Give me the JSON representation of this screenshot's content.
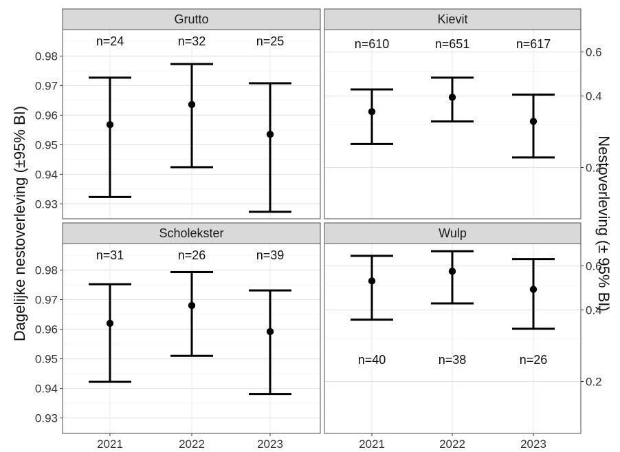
{
  "chart_data": {
    "type": "errorbar",
    "x_categories": [
      "2021",
      "2022",
      "2023"
    ],
    "left_axis": {
      "label": "Dagelijke nestoverleving (±95% BI)",
      "ticks": [
        "0.98",
        "0.97",
        "0.96",
        "0.95",
        "0.94",
        "0.93"
      ]
    },
    "right_axis": {
      "label": "Nestoverleving (± 95% BI)",
      "ticks": [
        "0.6",
        "0.4",
        "0.2"
      ]
    },
    "grid": true,
    "panels": [
      {
        "name": "Grutto",
        "axis": "left",
        "points": [
          {
            "x": "2021",
            "y": 0.9568,
            "lo": 0.9323,
            "hi": 0.9727,
            "n": "n=24"
          },
          {
            "x": "2022",
            "y": 0.9636,
            "lo": 0.9424,
            "hi": 0.9773,
            "n": "n=32"
          },
          {
            "x": "2023",
            "y": 0.9535,
            "lo": 0.9273,
            "hi": 0.9708,
            "n": "n=25"
          }
        ]
      },
      {
        "name": "Kievit",
        "axis": "right",
        "points": [
          {
            "x": "2021",
            "y": 0.34,
            "lo": 0.25,
            "hi": 0.42,
            "n": "n=610"
          },
          {
            "x": "2022",
            "y": 0.39,
            "lo": 0.31,
            "hi": 0.47,
            "n": "n=651"
          },
          {
            "x": "2023",
            "y": 0.31,
            "lo": 0.22,
            "hi": 0.4,
            "n": "n=617"
          }
        ]
      },
      {
        "name": "Scholekster",
        "axis": "left",
        "points": [
          {
            "x": "2021",
            "y": 0.962,
            "lo": 0.9422,
            "hi": 0.9752,
            "n": "n=31"
          },
          {
            "x": "2022",
            "y": 0.968,
            "lo": 0.951,
            "hi": 0.9793,
            "n": "n=26"
          },
          {
            "x": "2023",
            "y": 0.9592,
            "lo": 0.9381,
            "hi": 0.9731,
            "n": "n=39"
          }
        ]
      },
      {
        "name": "Wulp",
        "axis": "right",
        "points": [
          {
            "x": "2021",
            "y": 0.52,
            "lo": 0.36,
            "hi": 0.66,
            "n": "n=40"
          },
          {
            "x": "2022",
            "y": 0.57,
            "lo": 0.42,
            "hi": 0.69,
            "n": "n=38"
          },
          {
            "x": "2023",
            "y": 0.48,
            "lo": 0.33,
            "hi": 0.64,
            "n": "n=26"
          }
        ]
      }
    ]
  }
}
